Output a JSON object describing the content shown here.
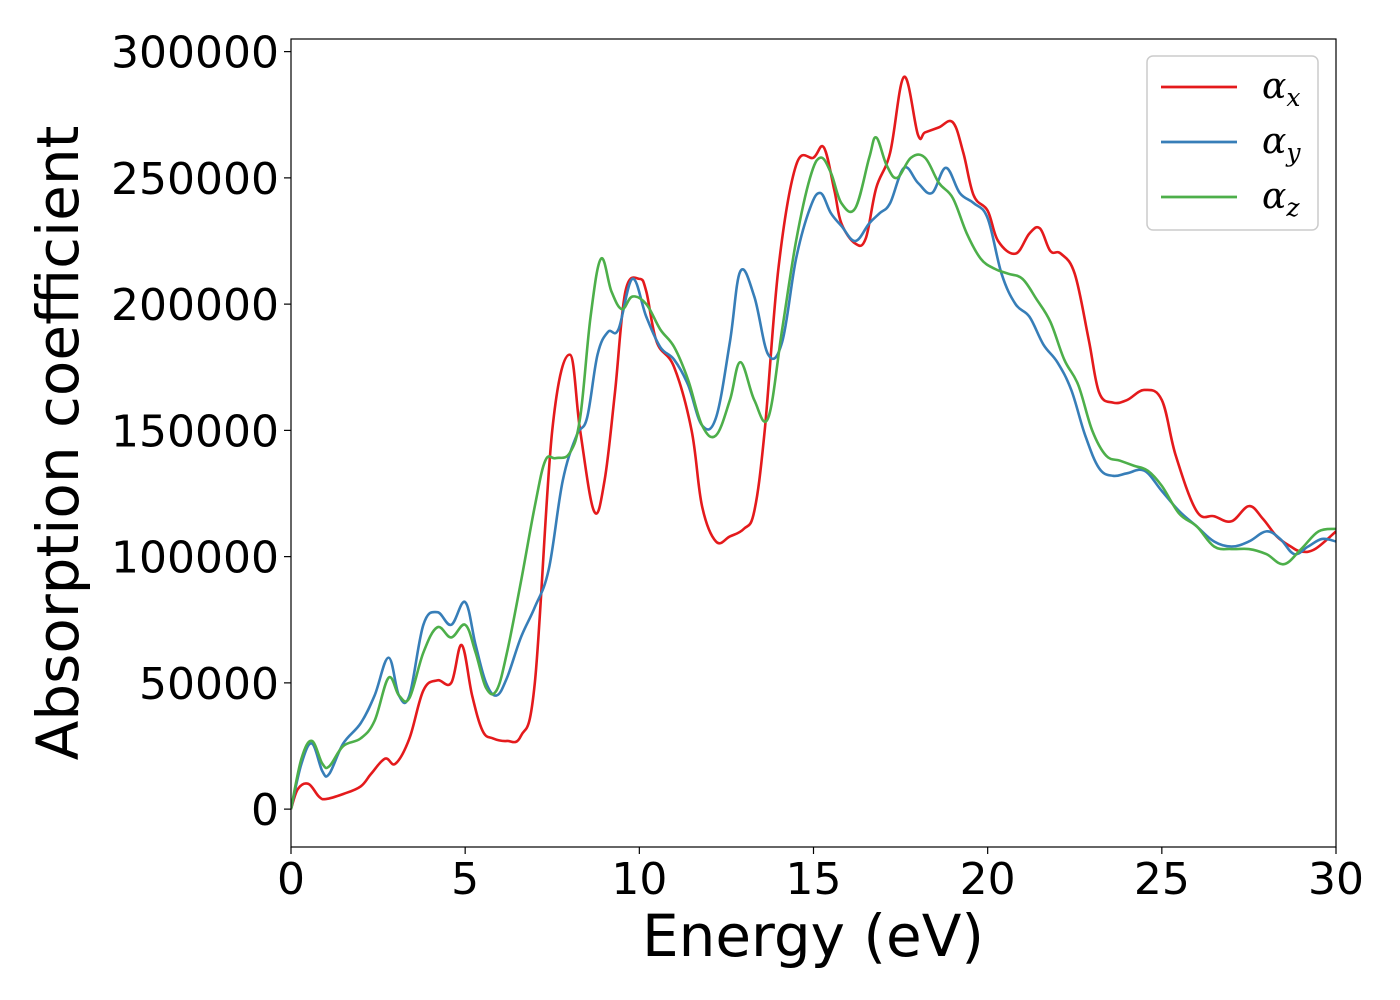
{
  "chart_data": {
    "type": "line",
    "title": "",
    "xlabel": "Energy (eV)",
    "ylabel": "Absorption coefficient",
    "xlim": [
      0,
      30
    ],
    "ylim": [
      -15000,
      305000
    ],
    "xticks": [
      0,
      5,
      10,
      15,
      20,
      25,
      30
    ],
    "xtick_labels": [
      "0",
      "5",
      "10",
      "15",
      "20",
      "25",
      "30"
    ],
    "yticks": [
      0,
      50000,
      100000,
      150000,
      200000,
      250000,
      300000
    ],
    "ytick_labels": [
      "0",
      "50000",
      "100000",
      "150000",
      "200000",
      "250000",
      "300000"
    ],
    "grid": false,
    "legend_position": "top-right",
    "series": [
      {
        "name": "α",
        "subscript": "x",
        "color": "#e41a1c",
        "x": [
          0,
          0.2,
          0.5,
          0.8,
          1.0,
          1.5,
          2.0,
          2.3,
          2.7,
          3.0,
          3.4,
          3.8,
          4.2,
          4.6,
          4.9,
          5.2,
          5.5,
          5.8,
          6.2,
          6.6,
          7.0,
          7.5,
          8.0,
          8.3,
          8.7,
          9.0,
          9.3,
          9.6,
          10.0,
          10.2,
          10.5,
          11.0,
          11.5,
          11.8,
          12.2,
          12.6,
          13.0,
          13.3,
          13.6,
          14.0,
          14.5,
          15.0,
          15.3,
          15.6,
          15.8,
          16.2,
          16.5,
          16.8,
          17.2,
          17.6,
          18.0,
          18.2,
          18.6,
          19.0,
          19.3,
          19.6,
          20.0,
          20.3,
          20.8,
          21.2,
          21.5,
          21.8,
          22.1,
          22.5,
          22.9,
          23.2,
          23.6,
          24.0,
          24.5,
          25.0,
          25.4,
          26.0,
          26.5,
          27.0,
          27.5,
          27.9,
          28.3,
          28.7,
          29.0,
          29.4,
          30.0
        ],
        "y": [
          0,
          8000,
          10000,
          5000,
          4000,
          6000,
          9000,
          14000,
          20000,
          18000,
          28000,
          47000,
          51000,
          50000,
          65000,
          45000,
          31000,
          28000,
          27000,
          29000,
          50000,
          150000,
          180000,
          150000,
          118000,
          130000,
          165000,
          205000,
          210000,
          205000,
          185000,
          175000,
          150000,
          120000,
          106000,
          108000,
          111000,
          118000,
          150000,
          215000,
          255000,
          258000,
          262000,
          245000,
          232000,
          224000,
          226000,
          246000,
          260000,
          290000,
          267000,
          268000,
          270000,
          272000,
          260000,
          243000,
          237000,
          225000,
          220000,
          228000,
          230000,
          221000,
          220000,
          212000,
          186000,
          165000,
          161000,
          162000,
          166000,
          162000,
          140000,
          118000,
          116000,
          114000,
          120000,
          115000,
          108000,
          104000,
          102000,
          103000,
          110000
        ]
      },
      {
        "name": "α",
        "subscript": "y",
        "color": "#377eb8",
        "x": [
          0,
          0.3,
          0.6,
          0.9,
          1.1,
          1.5,
          2.0,
          2.4,
          2.8,
          3.1,
          3.4,
          3.8,
          4.2,
          4.6,
          5.0,
          5.3,
          5.6,
          5.9,
          6.2,
          6.6,
          7.0,
          7.4,
          7.8,
          8.2,
          8.5,
          8.8,
          9.1,
          9.4,
          9.8,
          10.2,
          10.6,
          11.0,
          11.4,
          11.8,
          12.2,
          12.6,
          12.9,
          13.3,
          13.7,
          14.1,
          14.5,
          14.9,
          15.2,
          15.5,
          15.8,
          16.2,
          16.6,
          16.9,
          17.2,
          17.6,
          18.0,
          18.4,
          18.8,
          19.2,
          19.6,
          20.0,
          20.4,
          20.8,
          21.2,
          21.6,
          22.0,
          22.4,
          22.8,
          23.2,
          23.6,
          24.0,
          24.5,
          25.0,
          25.5,
          26.0,
          26.5,
          27.0,
          27.5,
          28.0,
          28.4,
          28.8,
          29.2,
          29.6,
          30.0
        ],
        "y": [
          0,
          18000,
          26000,
          15000,
          14000,
          26000,
          34000,
          45000,
          60000,
          45000,
          45000,
          73000,
          78000,
          73000,
          82000,
          65000,
          50000,
          45000,
          52000,
          68000,
          80000,
          95000,
          130000,
          148000,
          155000,
          180000,
          189000,
          190000,
          210000,
          195000,
          183000,
          178000,
          168000,
          152000,
          155000,
          185000,
          213000,
          203000,
          180000,
          185000,
          218000,
          238000,
          244000,
          236000,
          231000,
          225000,
          232000,
          236000,
          240000,
          254000,
          248000,
          244000,
          254000,
          244000,
          240000,
          234000,
          212000,
          200000,
          195000,
          184000,
          177000,
          166000,
          148000,
          135000,
          132000,
          133000,
          134000,
          126000,
          118000,
          112000,
          106000,
          104000,
          106000,
          110000,
          107000,
          101000,
          104000,
          107000,
          106000
        ]
      },
      {
        "name": "α",
        "subscript": "z",
        "color": "#4daf4a",
        "x": [
          0,
          0.3,
          0.6,
          0.9,
          1.1,
          1.5,
          2.0,
          2.4,
          2.8,
          3.1,
          3.4,
          3.8,
          4.2,
          4.6,
          5.0,
          5.3,
          5.6,
          5.9,
          6.2,
          6.6,
          7.0,
          7.3,
          7.6,
          8.0,
          8.3,
          8.6,
          8.9,
          9.2,
          9.5,
          9.8,
          10.2,
          10.6,
          11.0,
          11.4,
          11.8,
          12.2,
          12.6,
          12.9,
          13.3,
          13.7,
          14.1,
          14.5,
          14.9,
          15.2,
          15.5,
          15.8,
          16.2,
          16.6,
          16.8,
          17.1,
          17.4,
          17.8,
          18.2,
          18.6,
          19.0,
          19.4,
          19.8,
          20.2,
          20.6,
          21.0,
          21.4,
          21.8,
          22.2,
          22.6,
          23.0,
          23.4,
          23.8,
          24.2,
          24.6,
          25.0,
          25.5,
          26.0,
          26.5,
          27.0,
          27.5,
          28.0,
          28.5,
          29.0,
          29.5,
          30.0
        ],
        "y": [
          0,
          20000,
          27000,
          18000,
          17000,
          25000,
          28000,
          35000,
          52000,
          45000,
          44000,
          62000,
          72000,
          68000,
          73000,
          62000,
          48000,
          47000,
          62000,
          90000,
          120000,
          138000,
          139000,
          141000,
          155000,
          195000,
          218000,
          205000,
          198000,
          203000,
          200000,
          190000,
          183000,
          170000,
          152000,
          148000,
          162000,
          177000,
          162000,
          155000,
          190000,
          225000,
          250000,
          258000,
          252000,
          240000,
          238000,
          258000,
          266000,
          255000,
          250000,
          258000,
          258000,
          248000,
          242000,
          228000,
          218000,
          214000,
          212000,
          210000,
          202000,
          193000,
          178000,
          168000,
          150000,
          140000,
          138000,
          136000,
          134000,
          128000,
          117000,
          112000,
          104000,
          103000,
          103000,
          101000,
          97000,
          103000,
          110000,
          111000
        ]
      }
    ]
  }
}
